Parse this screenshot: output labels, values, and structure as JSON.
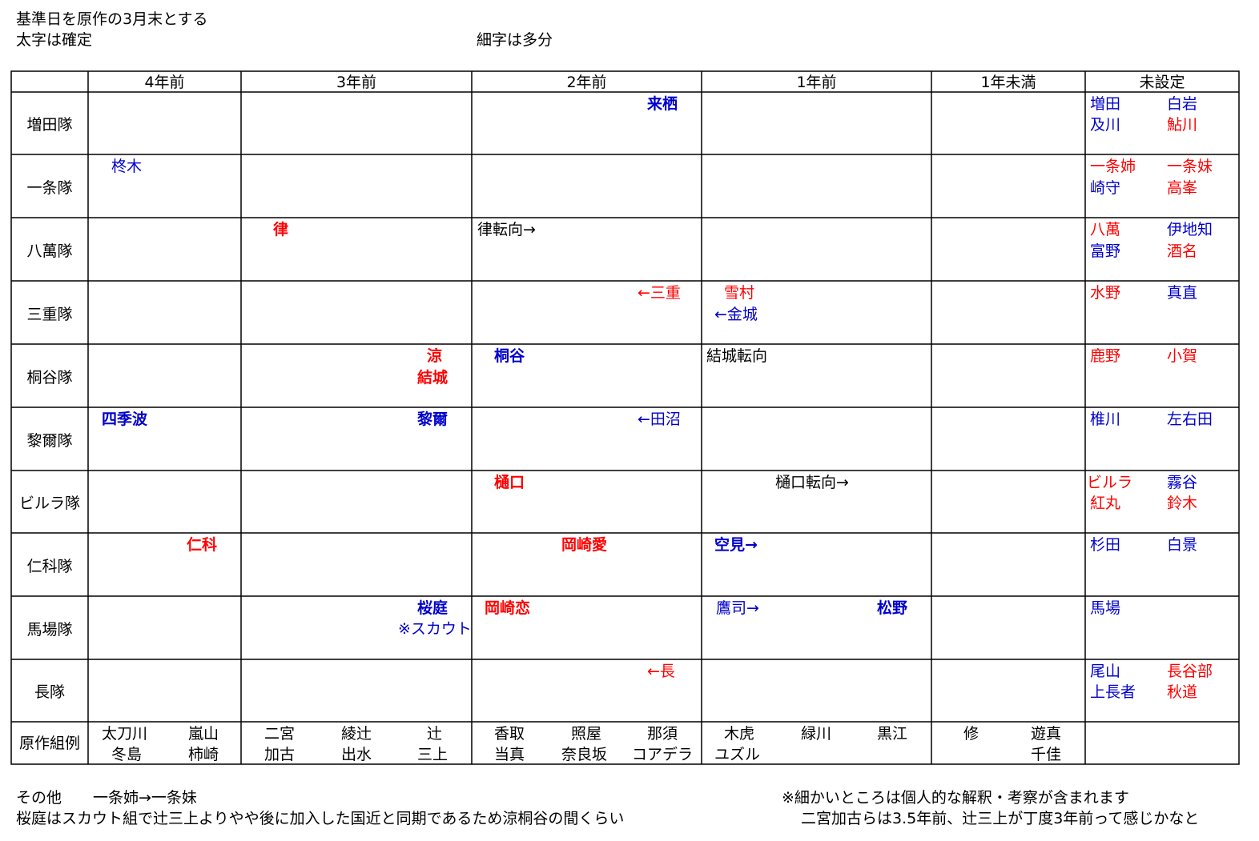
{
  "intro": {
    "line1": "基準日を原作の3月末とする",
    "line2": "太字は確定",
    "line3": "細字は多分"
  },
  "columns": [
    "4年前",
    "3年前",
    "2年前",
    "1年前",
    "1年未満",
    "未設定"
  ],
  "rows": [
    "増田隊",
    "一条隊",
    "八萬隊",
    "三重隊",
    "桐谷隊",
    "黎爾隊",
    "ビルラ隊",
    "仁科隊",
    "馬場隊",
    "長隊",
    "原作組例"
  ],
  "cells": {
    "masuda": {
      "raisei": "来栖",
      "u1": "増田",
      "u2": "白岩",
      "u3": "及川",
      "u4": "鮎川"
    },
    "ichijo": {
      "hiiragi": "柊木",
      "u1": "一条姉",
      "u2": "一条妹",
      "u3": "崎守",
      "u4": "高峯"
    },
    "yaman": {
      "ritsu": "律",
      "ritsu_move": "律転向→",
      "u1": "八萬",
      "u2": "伊地知",
      "u3": "富野",
      "u4": "酒名"
    },
    "mie": {
      "from_mie": "←三重",
      "yukimura": "雪村",
      "from_kaneshiro": "←金城",
      "u1": "水野",
      "u2": "真直"
    },
    "kiriya": {
      "ryo": "涼",
      "yuki": "結城",
      "kiriya": "桐谷",
      "yuki_move": "結城転向",
      "u1": "鹿野",
      "u2": "小賀"
    },
    "reiji": {
      "shikinami": "四季波",
      "reiji": "黎爾",
      "from_tanuma": "←田沼",
      "u1": "椎川",
      "u2": "左右田"
    },
    "birla": {
      "higuchi": "樋口",
      "higuchi_move": "樋口転向→",
      "u1": "ビルラ",
      "u2": "霧谷",
      "u3": "紅丸",
      "u4": "鈴木"
    },
    "nishina": {
      "nishina": "仁科",
      "okazaki_ai": "岡崎愛",
      "soramu": "空見→",
      "u1": "杉田",
      "u2": "白景"
    },
    "baba": {
      "sakuraniwa": "桜庭",
      "scout": "※スカウト",
      "okazaki_ren": "岡崎恋",
      "takashi": "鷹司→",
      "matsuno": "松野",
      "u1": "馬場"
    },
    "osa": {
      "from_osa": "←長",
      "u1": "尾山",
      "u2": "長谷部",
      "u3": "上長者",
      "u4": "秋道"
    },
    "gensaku": {
      "c1": [
        "太刀川",
        "嵐山",
        "冬島",
        "柿崎"
      ],
      "c2": [
        "二宮",
        "綾辻",
        "辻",
        "加古",
        "出水",
        "三上"
      ],
      "c3": [
        "香取",
        "照屋",
        "那須",
        "当真",
        "奈良坂",
        "コアデラ"
      ],
      "c4": [
        "木虎",
        "緑川",
        "黒江",
        "ユズル"
      ],
      "c5": [
        "修",
        "遊真",
        "千佳"
      ]
    }
  },
  "footer": {
    "other_label": "その他",
    "other_value": "一条姉→一条妹",
    "note_left": "桜庭はスカウト組で辻三上よりやや後に加入した国近と同期であるため涼桐谷の間くらい",
    "note_right1": "※細かいところは個人的な解釈・考察が含まれます",
    "note_right2": "二宮加古らは3.5年前、辻三上が丁度3年前って感じかなと"
  },
  "colors": {
    "red": "#ff0000",
    "blue": "#0000cc",
    "grid": "#000000"
  }
}
